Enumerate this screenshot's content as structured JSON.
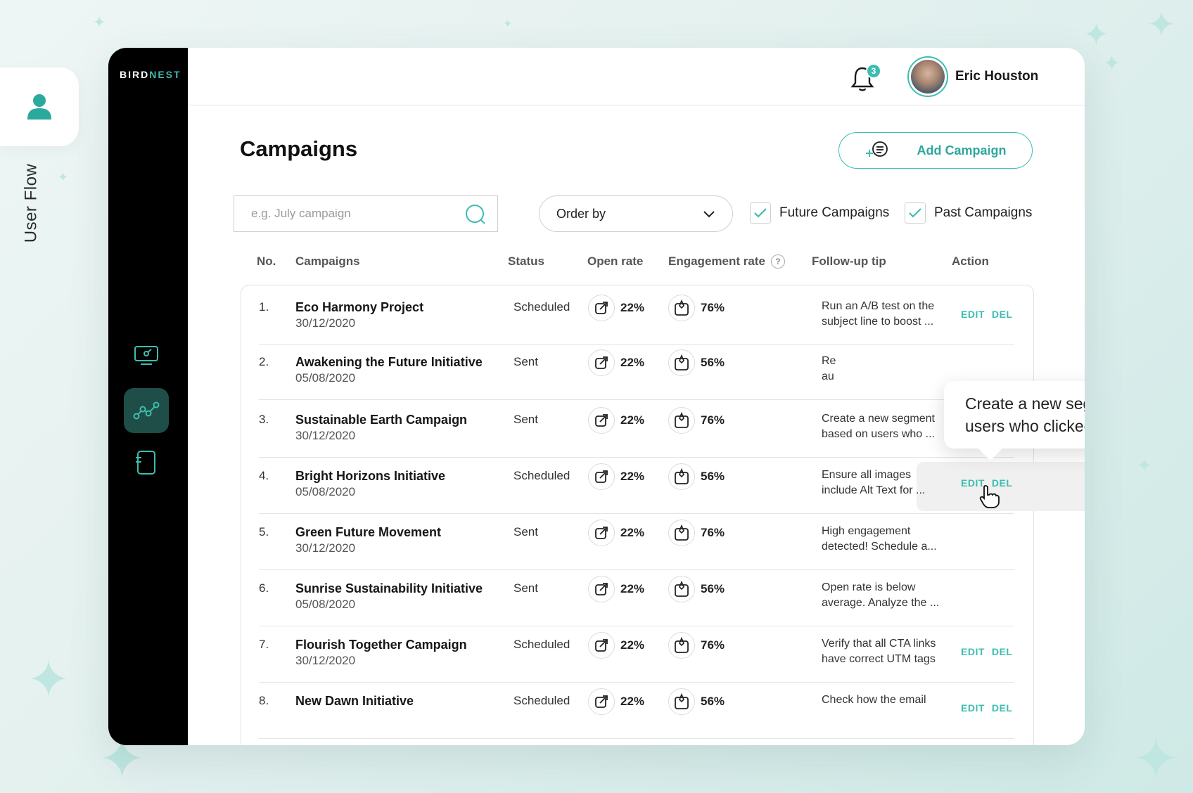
{
  "side_tab": {
    "label": "User Flow"
  },
  "brand": {
    "part1": "BIRD",
    "part2": "NEST"
  },
  "header": {
    "notification_count": "3",
    "user_name": "Eric Houston"
  },
  "page": {
    "title": "Campaigns",
    "add_button": "Add Campaign"
  },
  "filters": {
    "search_placeholder": "e.g. July campaign",
    "order_by": "Order by",
    "future_label": "Future Campaigns",
    "past_label": "Past Campaigns",
    "future_checked": true,
    "past_checked": true
  },
  "columns": {
    "no": "No.",
    "campaigns": "Campaigns",
    "status": "Status",
    "open_rate": "Open rate",
    "engagement_rate": "Engagement rate",
    "follow_up": "Follow-up tip",
    "action": "Action"
  },
  "action_labels": {
    "edit": "EDIT",
    "del": "DEL"
  },
  "rows": [
    {
      "no": "1.",
      "name": "Eco Harmony Project",
      "date": "30/12/2020",
      "status": "Scheduled",
      "open": "22%",
      "engagement": "76%",
      "tip1": "Run an A/B test on the",
      "tip2": "subject line to boost ...",
      "actions": true
    },
    {
      "no": "2.",
      "name": "Awakening the Future Initiative",
      "date": "05/08/2020",
      "status": "Sent",
      "open": "22%",
      "engagement": "56%",
      "tip1": "Re",
      "tip2": "au",
      "actions": false
    },
    {
      "no": "3.",
      "name": "Sustainable Earth Campaign",
      "date": "30/12/2020",
      "status": "Sent",
      "open": "22%",
      "engagement": "76%",
      "tip1": "Create a new segment",
      "tip2": "based on users who ...",
      "actions": false
    },
    {
      "no": "4.",
      "name": "Bright Horizons Initiative",
      "date": "05/08/2020",
      "status": "Scheduled",
      "open": "22%",
      "engagement": "56%",
      "tip1": "Ensure all images",
      "tip2": "include Alt Text for ...",
      "actions": true
    },
    {
      "no": "5.",
      "name": "Green Future Movement",
      "date": "30/12/2020",
      "status": "Sent",
      "open": "22%",
      "engagement": "76%",
      "tip1": "High engagement",
      "tip2": "detected! Schedule a...",
      "actions": false
    },
    {
      "no": "6.",
      "name": "Sunrise Sustainability Initiative",
      "date": "05/08/2020",
      "status": "Sent",
      "open": "22%",
      "engagement": "56%",
      "tip1": "Open rate is below",
      "tip2": "average. Analyze the ...",
      "actions": false
    },
    {
      "no": "7.",
      "name": "Flourish Together Campaign",
      "date": "30/12/2020",
      "status": "Scheduled",
      "open": "22%",
      "engagement": "76%",
      "tip1": "Verify that all CTA links",
      "tip2": "have correct UTM tags",
      "actions": true
    },
    {
      "no": "8.",
      "name": "New Dawn Initiative",
      "date": "",
      "status": "Scheduled",
      "open": "22%",
      "engagement": "56%",
      "tip1": "Check how the email",
      "tip2": "",
      "actions": true
    }
  ],
  "tooltip": {
    "text": "Create a new segment based on users who clicked the link."
  },
  "colors": {
    "accent": "#3dbdb0",
    "sidebar": "#000000",
    "active_nav": "#1f4d48"
  },
  "icons": [
    "user-icon",
    "dashboard-icon",
    "analytics-icon",
    "document-icon",
    "bell-icon",
    "add-list-icon",
    "search-icon",
    "chevron-down-icon",
    "check-icon",
    "share-icon",
    "boost-icon",
    "help-icon",
    "hand-cursor-icon"
  ]
}
